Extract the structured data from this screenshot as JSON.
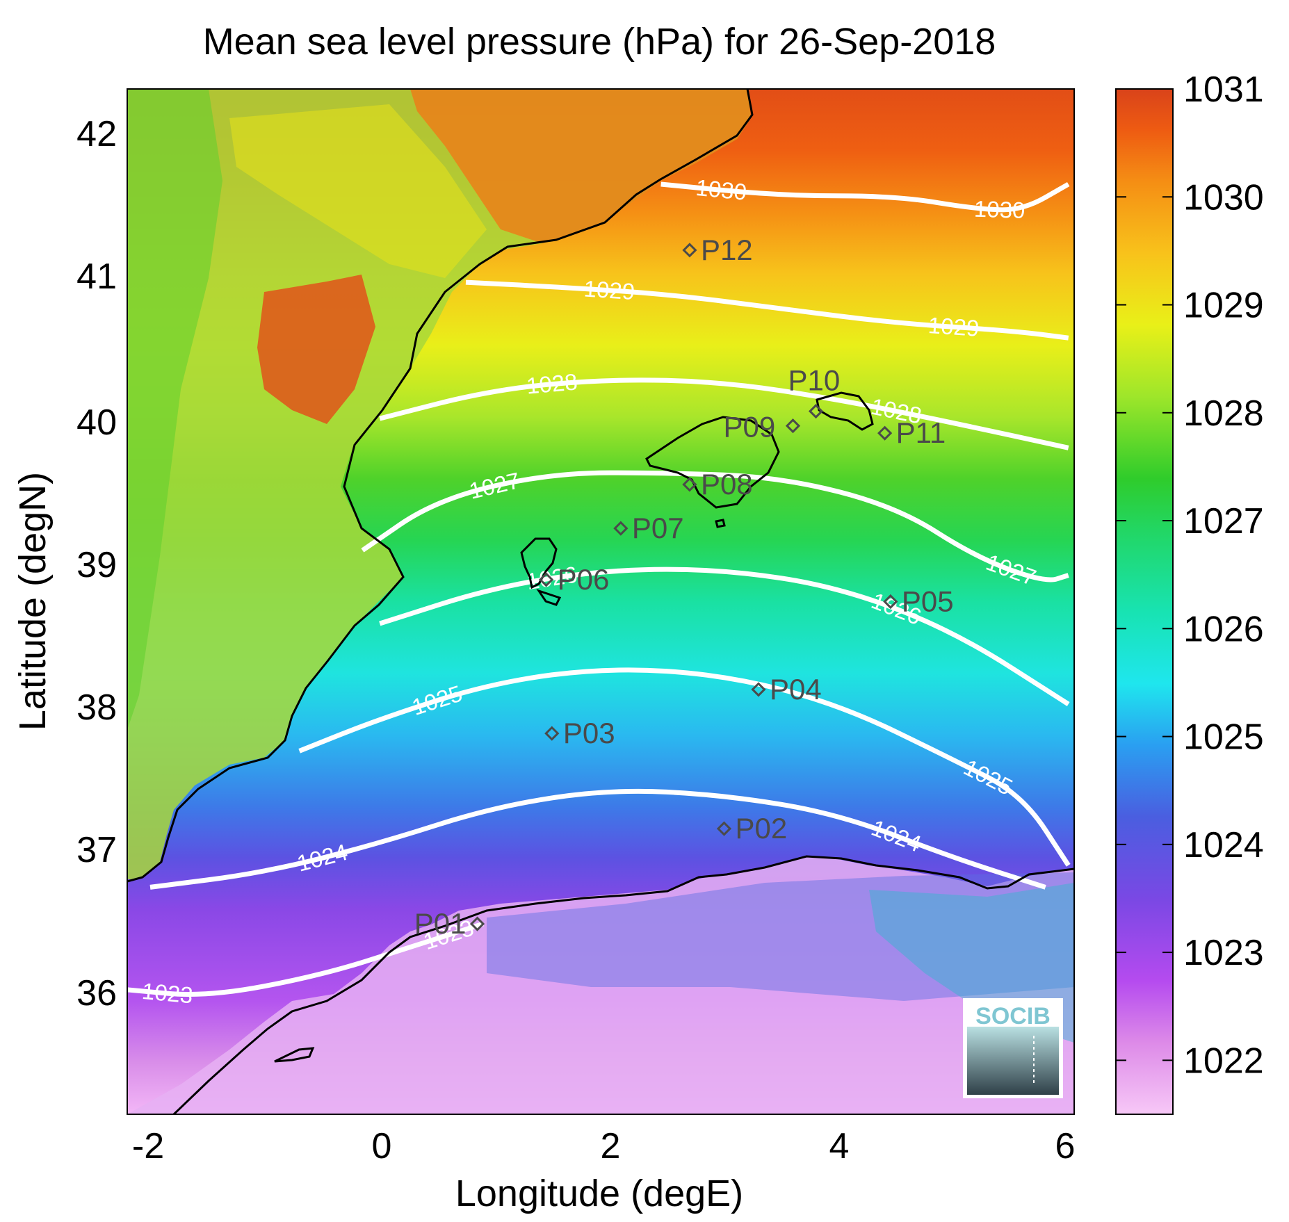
{
  "title": "Mean sea level pressure (hPa) for 26-Sep-2018",
  "xlabel": "Longitude (degE)",
  "ylabel": "Latitude (degN)",
  "x_ticks": [
    "-2",
    "0",
    "2",
    "4",
    "6"
  ],
  "y_ticks": [
    "36",
    "37",
    "38",
    "39",
    "40",
    "41",
    "42"
  ],
  "colorbar": {
    "ticks": [
      "1022",
      "1023",
      "1024",
      "1025",
      "1026",
      "1027",
      "1028",
      "1029",
      "1030",
      "1031"
    ],
    "range": [
      1021.5,
      1031
    ]
  },
  "chart_data": {
    "type": "heatmap",
    "xlim": [
      -2.2,
      6.05
    ],
    "ylim": [
      35.2,
      42.2
    ],
    "colorbar_range": [
      1021.5,
      1031
    ],
    "isobars": [
      {
        "level": "1023",
        "points": [
          [
            -2.2,
            36.05
          ],
          [
            -1.5,
            36.0
          ],
          [
            -0.5,
            36.15
          ],
          [
            0.3,
            36.35
          ],
          [
            0.9,
            36.5
          ]
        ]
      },
      {
        "level": "1024",
        "points": [
          [
            -2.0,
            36.75
          ],
          [
            -1.0,
            36.85
          ],
          [
            0.0,
            37.05
          ],
          [
            1.0,
            37.3
          ],
          [
            2.0,
            37.42
          ],
          [
            3.0,
            37.38
          ],
          [
            4.0,
            37.25
          ],
          [
            5.0,
            36.95
          ],
          [
            5.8,
            36.75
          ]
        ]
      },
      {
        "level": "1025",
        "points": [
          [
            -0.7,
            37.68
          ],
          [
            0.0,
            37.9
          ],
          [
            1.0,
            38.15
          ],
          [
            2.0,
            38.25
          ],
          [
            3.0,
            38.2
          ],
          [
            4.0,
            38.0
          ],
          [
            5.0,
            37.62
          ],
          [
            5.6,
            37.38
          ],
          [
            6.0,
            36.9
          ]
        ]
      },
      {
        "level": "1026",
        "points": [
          [
            0.0,
            38.55
          ],
          [
            1.0,
            38.8
          ],
          [
            2.0,
            38.92
          ],
          [
            3.0,
            38.92
          ],
          [
            4.0,
            38.8
          ],
          [
            5.0,
            38.5
          ],
          [
            6.0,
            38.0
          ]
        ]
      },
      {
        "level": "1027",
        "points": [
          [
            -0.15,
            39.05
          ],
          [
            0.5,
            39.4
          ],
          [
            1.5,
            39.58
          ],
          [
            2.5,
            39.58
          ],
          [
            3.5,
            39.55
          ],
          [
            4.5,
            39.35
          ],
          [
            5.2,
            39.0
          ],
          [
            5.8,
            38.83
          ],
          [
            6.0,
            38.88
          ]
        ]
      },
      {
        "level": "1028",
        "points": [
          [
            0.0,
            39.95
          ],
          [
            1.0,
            40.15
          ],
          [
            2.0,
            40.22
          ],
          [
            3.0,
            40.2
          ],
          [
            4.0,
            40.08
          ],
          [
            5.0,
            39.92
          ],
          [
            6.0,
            39.75
          ]
        ]
      },
      {
        "level": "1029",
        "points": [
          [
            0.75,
            40.88
          ],
          [
            1.5,
            40.85
          ],
          [
            2.5,
            40.8
          ],
          [
            3.5,
            40.7
          ],
          [
            4.5,
            40.6
          ],
          [
            5.5,
            40.55
          ],
          [
            6.0,
            40.5
          ]
        ]
      },
      {
        "level": "1030",
        "points": [
          [
            2.45,
            41.55
          ],
          [
            3.5,
            41.47
          ],
          [
            4.5,
            41.47
          ],
          [
            5.2,
            41.38
          ],
          [
            5.6,
            41.37
          ],
          [
            6.0,
            41.55
          ]
        ]
      }
    ],
    "stations": [
      {
        "id": "P01",
        "lon": 0.85,
        "lat": 36.5
      },
      {
        "id": "P02",
        "lon": 3.0,
        "lat": 37.15
      },
      {
        "id": "P03",
        "lon": 1.5,
        "lat": 37.8
      },
      {
        "id": "P04",
        "lon": 3.3,
        "lat": 38.1
      },
      {
        "id": "P05",
        "lon": 4.45,
        "lat": 38.7
      },
      {
        "id": "P06",
        "lon": 1.45,
        "lat": 38.85
      },
      {
        "id": "P07",
        "lon": 2.1,
        "lat": 39.2
      },
      {
        "id": "P08",
        "lon": 2.7,
        "lat": 39.5
      },
      {
        "id": "P09",
        "lon": 3.6,
        "lat": 39.9
      },
      {
        "id": "P10",
        "lon": 3.8,
        "lat": 40.0
      },
      {
        "id": "P11",
        "lon": 4.4,
        "lat": 39.85
      },
      {
        "id": "P12",
        "lon": 2.7,
        "lat": 41.1
      }
    ]
  },
  "logo_text": "SOCIB"
}
